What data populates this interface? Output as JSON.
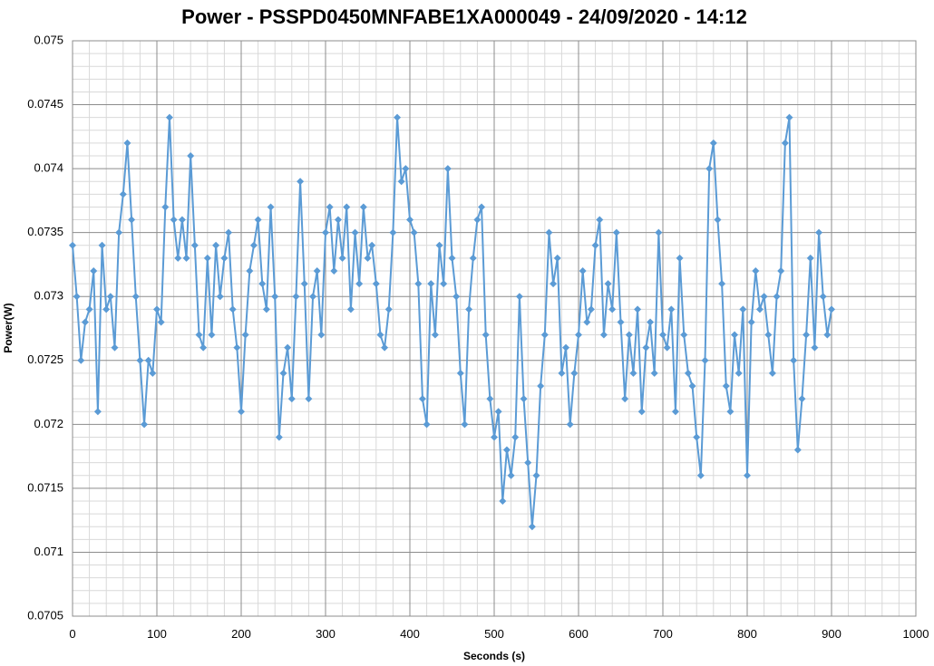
{
  "chart_data": {
    "type": "line",
    "title": "Power - PSSPD0450MNFABE1XA000049 - 24/09/2020 - 14:12",
    "x_label": "Seconds (s)",
    "y_label": "Power(W)",
    "xlim": [
      0,
      1000
    ],
    "xticks": [
      0,
      100,
      200,
      300,
      400,
      500,
      600,
      700,
      800,
      900,
      1000
    ],
    "ylim": [
      0.0705,
      0.075
    ],
    "yticks": [
      0.0705,
      0.071,
      0.0715,
      0.072,
      0.0725,
      0.073,
      0.0735,
      0.074,
      0.0745,
      0.075
    ],
    "grid": true,
    "minor_grid": true,
    "x": [
      0,
      5,
      10,
      15,
      20,
      25,
      30,
      35,
      40,
      45,
      50,
      55,
      60,
      65,
      70,
      75,
      80,
      85,
      90,
      95,
      100,
      105,
      110,
      115,
      120,
      125,
      130,
      135,
      140,
      145,
      150,
      155,
      160,
      165,
      170,
      175,
      180,
      185,
      190,
      195,
      200,
      205,
      210,
      215,
      220,
      225,
      230,
      235,
      240,
      245,
      250,
      255,
      260,
      265,
      270,
      275,
      280,
      285,
      290,
      295,
      300,
      305,
      310,
      315,
      320,
      325,
      330,
      335,
      340,
      345,
      350,
      355,
      360,
      365,
      370,
      375,
      380,
      385,
      390,
      395,
      400,
      405,
      410,
      415,
      420,
      425,
      430,
      435,
      440,
      445,
      450,
      455,
      460,
      465,
      470,
      475,
      480,
      485,
      490,
      495,
      500,
      505,
      510,
      515,
      520,
      525,
      530,
      535,
      540,
      545,
      550,
      555,
      560,
      565,
      570,
      575,
      580,
      585,
      590,
      595,
      600,
      605,
      610,
      615,
      620,
      625,
      630,
      635,
      640,
      645,
      650,
      655,
      660,
      665,
      670,
      675,
      680,
      685,
      690,
      695,
      700,
      705,
      710,
      715,
      720,
      725,
      730,
      735,
      740,
      745,
      750,
      755,
      760,
      765,
      770,
      775,
      780,
      785,
      790,
      795,
      800,
      805,
      810,
      815,
      820,
      825,
      830,
      835,
      840,
      845,
      850,
      855,
      860,
      865,
      870,
      875,
      880,
      885,
      890,
      895,
      900
    ],
    "series": [
      {
        "name": "Power",
        "color": "#5b9bd5",
        "values": [
          0.0734,
          0.073,
          0.0725,
          0.0728,
          0.0729,
          0.0732,
          0.0721,
          0.0734,
          0.0729,
          0.073,
          0.0726,
          0.0735,
          0.0738,
          0.0742,
          0.0736,
          0.073,
          0.0725,
          0.072,
          0.0725,
          0.0724,
          0.0729,
          0.0728,
          0.0737,
          0.0744,
          0.0736,
          0.0733,
          0.0736,
          0.0733,
          0.0741,
          0.0734,
          0.0727,
          0.0726,
          0.0733,
          0.0727,
          0.0734,
          0.073,
          0.0733,
          0.0735,
          0.0729,
          0.0726,
          0.0721,
          0.0727,
          0.0732,
          0.0734,
          0.0736,
          0.0731,
          0.0729,
          0.0737,
          0.073,
          0.0719,
          0.0724,
          0.0726,
          0.0722,
          0.073,
          0.0739,
          0.0731,
          0.0722,
          0.073,
          0.0732,
          0.0727,
          0.0735,
          0.0737,
          0.0732,
          0.0736,
          0.0733,
          0.0737,
          0.0729,
          0.0735,
          0.0731,
          0.0737,
          0.0733,
          0.0734,
          0.0731,
          0.0727,
          0.0726,
          0.0729,
          0.0735,
          0.0744,
          0.0739,
          0.074,
          0.0736,
          0.0735,
          0.0731,
          0.0722,
          0.072,
          0.0731,
          0.0727,
          0.0734,
          0.0731,
          0.074,
          0.0733,
          0.073,
          0.0724,
          0.072,
          0.0729,
          0.0733,
          0.0736,
          0.0737,
          0.0727,
          0.0722,
          0.0719,
          0.0721,
          0.0714,
          0.0718,
          0.0716,
          0.0719,
          0.073,
          0.0722,
          0.0717,
          0.0712,
          0.0716,
          0.0723,
          0.0727,
          0.0735,
          0.0731,
          0.0733,
          0.0724,
          0.0726,
          0.072,
          0.0724,
          0.0727,
          0.0732,
          0.0728,
          0.0729,
          0.0734,
          0.0736,
          0.0727,
          0.0731,
          0.0729,
          0.0735,
          0.0728,
          0.0722,
          0.0727,
          0.0724,
          0.0729,
          0.0721,
          0.0726,
          0.0728,
          0.0724,
          0.0735,
          0.0727,
          0.0726,
          0.0729,
          0.0721,
          0.0733,
          0.0727,
          0.0724,
          0.0723,
          0.0719,
          0.0716,
          0.0725,
          0.074,
          0.0742,
          0.0736,
          0.0731,
          0.0723,
          0.0721,
          0.0727,
          0.0724,
          0.0729,
          0.0716,
          0.0728,
          0.0732,
          0.0729,
          0.073,
          0.0727,
          0.0724,
          0.073,
          0.0732,
          0.0742,
          0.0744,
          0.0725,
          0.0718,
          0.0722,
          0.0727,
          0.0733,
          0.0726,
          0.0735,
          0.073,
          0.0727,
          0.0729
        ]
      }
    ]
  }
}
